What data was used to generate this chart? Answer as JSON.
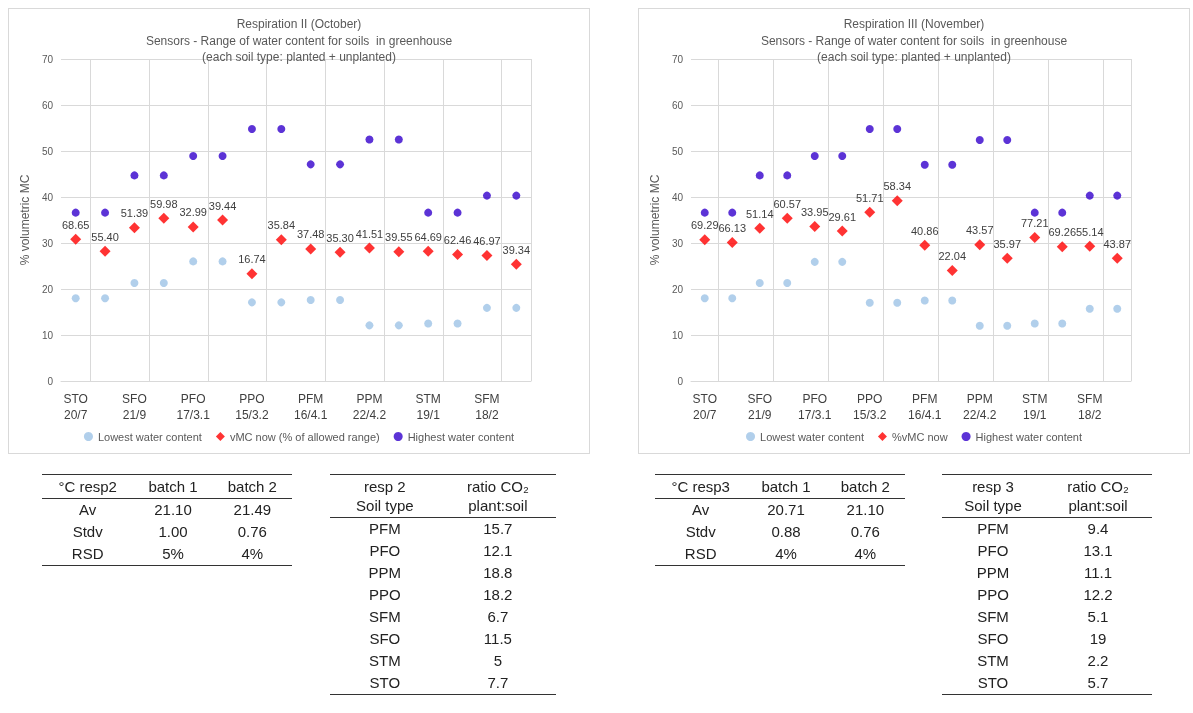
{
  "chart_data": [
    {
      "type": "scatter",
      "title": "Respiration II (October)",
      "subtitle": "Sensors - Range of water content for soils  in greenhouse\n(each soil type: planted + unplanted)",
      "ylabel": "% volumetric MC",
      "categories": [
        "STO\n20/7",
        null,
        "SFO\n21/9",
        null,
        "PFO\n17/3.1",
        null,
        "PPO\n15/3.2",
        null,
        "PFM\n16/4.1",
        null,
        "PPM\n22/4.2",
        null,
        "STM\n19/1",
        null,
        "SFM\n18/2",
        null
      ],
      "ylim": [
        0,
        70
      ],
      "yticks": [
        0,
        10,
        20,
        30,
        40,
        50,
        60,
        70
      ],
      "grid": true,
      "legend": "bottom",
      "series": [
        {
          "name": "Lowest water content",
          "color": "#9dc3e6",
          "marker": "circle",
          "values": [
            18.0,
            18.0,
            21.3,
            21.3,
            26.0,
            26.0,
            17.1,
            17.1,
            17.6,
            17.6,
            12.1,
            12.1,
            12.5,
            12.5,
            15.9,
            15.9
          ]
        },
        {
          "name": "vMC now (% of allowed range)",
          "color": "#ff0000",
          "marker": "diamond",
          "values": [
            30.8,
            28.2,
            33.3,
            35.4,
            33.5,
            35.0,
            23.3,
            30.7,
            28.7,
            28.0,
            28.9,
            28.1,
            28.2,
            27.5,
            27.3,
            25.4
          ]
        },
        {
          "name": "Highest water content",
          "color": "#3300cc",
          "marker": "circle",
          "values": [
            36.6,
            36.6,
            44.7,
            44.7,
            48.9,
            48.9,
            54.8,
            54.8,
            47.1,
            47.1,
            52.5,
            52.5,
            36.6,
            36.6,
            40.3,
            40.3
          ]
        }
      ],
      "annotations": [
        {
          "text": "68.65",
          "y": 30.8
        },
        {
          "text": "55.40",
          "y": 28.2
        },
        {
          "text": "51.39",
          "y": 33.3
        },
        {
          "text": "59.98",
          "y": 35.4
        },
        {
          "text": "32.99",
          "y": 33.5
        },
        {
          "text": "39.44",
          "y": 35.0
        },
        {
          "text": "16.74",
          "y": 23.3
        },
        {
          "text": "35.84",
          "y": 30.7
        },
        {
          "text": "37.48",
          "y": 28.7
        },
        {
          "text": "35.30",
          "y": 28.0
        },
        {
          "text": "41.51",
          "y": 28.9
        },
        {
          "text": "39.55",
          "y": 28.1
        },
        {
          "text": "64.69",
          "y": 28.2
        },
        {
          "text": "62.46",
          "y": 27.5
        },
        {
          "text": "46.97",
          "y": 27.3
        },
        {
          "text": "39.34",
          "y": 25.4
        }
      ]
    },
    {
      "type": "scatter",
      "title": "Respiration III (November)",
      "subtitle": "Sensors - Range of water content for soils  in greenhouse\n(each soil type: planted + unplanted)",
      "ylabel": "% volumetric MC",
      "categories": [
        "STO\n20/7",
        null,
        "SFO\n21/9",
        null,
        "PFO\n17/3.1",
        null,
        "PPO\n15/3.2",
        null,
        "PFM\n16/4.1",
        null,
        "PPM\n22/4.2",
        null,
        "STM\n19/1",
        null,
        "SFM\n18/2",
        null
      ],
      "ylim": [
        0,
        70
      ],
      "yticks": [
        0,
        10,
        20,
        30,
        40,
        50,
        60,
        70
      ],
      "grid": true,
      "legend": "bottom",
      "series": [
        {
          "name": "Lowest water content",
          "color": "#9dc3e6",
          "marker": "circle",
          "values": [
            18.0,
            18.0,
            21.3,
            21.3,
            25.9,
            25.9,
            17.0,
            17.0,
            17.5,
            17.5,
            12.0,
            12.0,
            12.5,
            12.5,
            15.7,
            15.7
          ]
        },
        {
          "name": "%vMC now",
          "color": "#ff0000",
          "marker": "diamond",
          "values": [
            30.7,
            30.1,
            33.2,
            35.4,
            33.6,
            32.6,
            36.7,
            39.2,
            29.5,
            24.0,
            29.6,
            26.7,
            31.2,
            29.2,
            29.3,
            26.7
          ]
        },
        {
          "name": "Highest water content",
          "color": "#3300cc",
          "marker": "circle",
          "values": [
            36.6,
            36.6,
            44.7,
            44.7,
            48.9,
            48.9,
            54.8,
            54.8,
            47.0,
            47.0,
            52.4,
            52.4,
            36.6,
            36.6,
            40.3,
            40.3
          ]
        }
      ],
      "annotations": [
        {
          "text": "69.29",
          "y": 30.7
        },
        {
          "text": "66.13",
          "y": 30.1
        },
        {
          "text": "51.14",
          "y": 33.2
        },
        {
          "text": "60.57",
          "y": 35.4
        },
        {
          "text": "33.95",
          "y": 33.6
        },
        {
          "text": "29.61",
          "y": 32.6
        },
        {
          "text": "51.71",
          "y": 36.7
        },
        {
          "text": "58.34",
          "y": 39.2
        },
        {
          "text": "40.86",
          "y": 29.5
        },
        {
          "text": "22.04",
          "y": 24.0
        },
        {
          "text": "43.57",
          "y": 29.6
        },
        {
          "text": "35.97",
          "y": 26.7
        },
        {
          "text": "77.21",
          "y": 31.2
        },
        {
          "text": "69.26",
          "y": 29.2
        },
        {
          "text": "55.14",
          "y": 29.3
        },
        {
          "text": "43.87",
          "y": 26.7
        }
      ]
    },
    {
      "type": "other",
      "categories": [
        "°C resp2",
        "batch 1",
        "batch 2"
      ],
      "y_categories": [
        "Av",
        "Stdv",
        "RSD"
      ],
      "cell_labels": [
        [
          "21.10",
          "21.49"
        ],
        [
          "1.00",
          "0.76"
        ],
        [
          "5%",
          "4%"
        ]
      ]
    },
    {
      "type": "other",
      "categories": [
        "resp 2\nSoil type",
        "ratio CO₂\nplant:soil"
      ],
      "y_categories": [
        "PFM",
        "PFO",
        "PPM",
        "PPO",
        "SFM",
        "SFO",
        "STM",
        "STO"
      ],
      "cell_labels": [
        [
          "15.7"
        ],
        [
          "12.1"
        ],
        [
          "18.8"
        ],
        [
          "18.2"
        ],
        [
          "6.7"
        ],
        [
          "11.5"
        ],
        [
          "5"
        ],
        [
          "7.7"
        ]
      ]
    },
    {
      "type": "other",
      "categories": [
        "°C resp3",
        "batch 1",
        "batch 2"
      ],
      "y_categories": [
        "Av",
        "Stdv",
        "RSD"
      ],
      "cell_labels": [
        [
          "20.71",
          "21.10"
        ],
        [
          "0.88",
          "0.76"
        ],
        [
          "4%",
          "4%"
        ]
      ]
    },
    {
      "type": "other",
      "categories": [
        "resp 3\nSoil type",
        "ratio CO₂\nplant:soil"
      ],
      "y_categories": [
        "PFM",
        "PFO",
        "PPM",
        "PPO",
        "SFM",
        "SFO",
        "STM",
        "STO"
      ],
      "cell_labels": [
        [
          "9.4"
        ],
        [
          "13.1"
        ],
        [
          "11.1"
        ],
        [
          "12.2"
        ],
        [
          "5.1"
        ],
        [
          "19"
        ],
        [
          "2.2"
        ],
        [
          "5.7"
        ]
      ]
    }
  ]
}
